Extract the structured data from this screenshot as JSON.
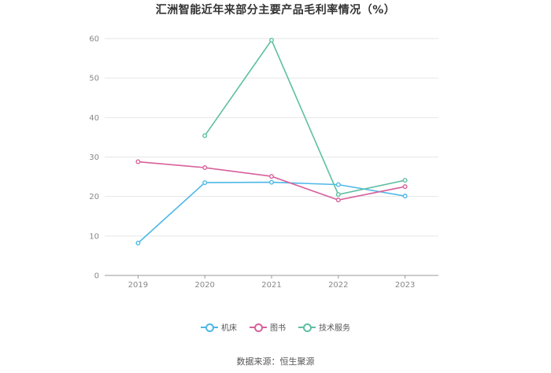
{
  "title": "汇洲智能近年来部分主要产品毛利率情况（%）",
  "source": "数据来源：恒生聚源",
  "chart_data": {
    "type": "line",
    "categories": [
      "2019",
      "2020",
      "2021",
      "2022",
      "2023"
    ],
    "ylim": [
      0,
      60
    ],
    "yticks": [
      0,
      10,
      20,
      30,
      40,
      50,
      60
    ],
    "grid": true,
    "legend_position": "bottom",
    "series": [
      {
        "name": "机床",
        "color": "#4db8e8",
        "values": [
          8.2,
          23.5,
          23.6,
          23.0,
          20.1
        ]
      },
      {
        "name": "图书",
        "color": "#d8619c",
        "values": [
          28.8,
          27.3,
          25.1,
          19.1,
          22.5
        ]
      },
      {
        "name": "技术服务",
        "color": "#5ebfa3",
        "values": [
          null,
          35.4,
          59.6,
          20.5,
          24.1
        ]
      }
    ]
  }
}
